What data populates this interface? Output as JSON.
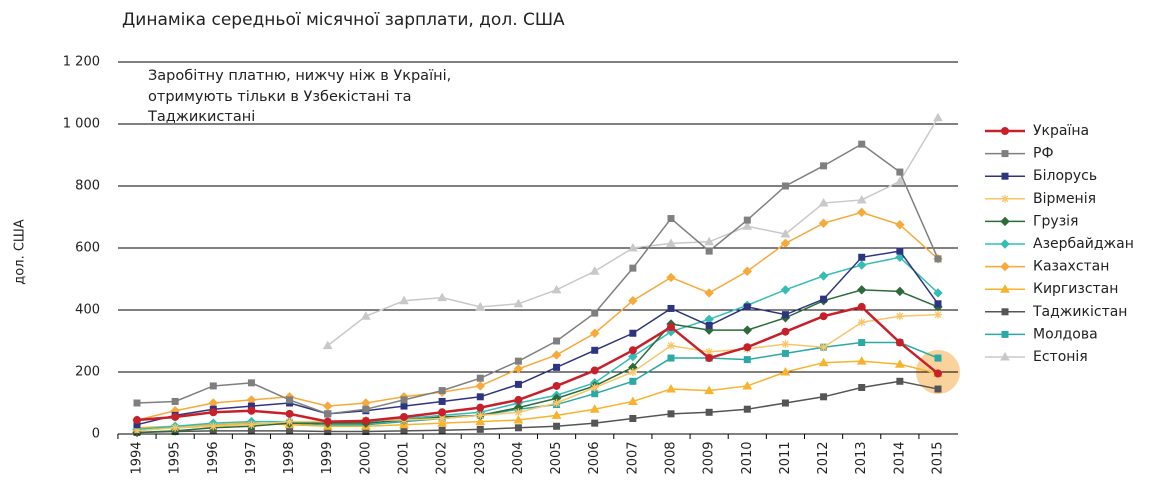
{
  "chart_data": {
    "type": "line",
    "title": "Динаміка  середньої місячної зарплати, дол. США",
    "ylabel": "дол. США",
    "annotation": [
      "Заробітну платню, нижчу ніж в Україні,",
      "отримують тільки в Узбекістані та",
      "Таджикистані"
    ],
    "categories": [
      "1994",
      "1995",
      "1996",
      "1997",
      "1998",
      "1999",
      "2000",
      "2001",
      "2002",
      "2003",
      "2004",
      "2005",
      "2006",
      "2007",
      "2008",
      "2009",
      "2010",
      "2011",
      "2012",
      "2013",
      "2014",
      "2015"
    ],
    "ylim": [
      0,
      1200
    ],
    "yticks": [
      0,
      200,
      400,
      600,
      800,
      {
        "value": 1000,
        "label": "1 000"
      },
      {
        "value": 1200,
        "label": "1 200"
      }
    ],
    "grid": true,
    "legend": "right",
    "series": [
      {
        "name": "Україна",
        "color": "#c8202a",
        "marker": "circle",
        "values": [
          45,
          55,
          70,
          75,
          65,
          40,
          42,
          55,
          70,
          85,
          110,
          155,
          205,
          270,
          345,
          245,
          280,
          330,
          380,
          410,
          295,
          195
        ]
      },
      {
        "name": "РФ",
        "color": "#7f7f7f",
        "marker": "square",
        "values": [
          100,
          105,
          155,
          165,
          110,
          65,
          80,
          110,
          140,
          180,
          235,
          300,
          390,
          535,
          695,
          590,
          690,
          800,
          865,
          935,
          845,
          565
        ]
      },
      {
        "name": "Білорусь",
        "color": "#2e3580",
        "marker": "square",
        "values": [
          30,
          60,
          80,
          90,
          100,
          65,
          75,
          90,
          105,
          120,
          160,
          215,
          270,
          325,
          405,
          350,
          410,
          385,
          435,
          570,
          590,
          420
        ]
      },
      {
        "name": "Вірменія",
        "color": "#f7c66a",
        "marker": "star",
        "values": [
          10,
          20,
          25,
          30,
          40,
          40,
          45,
          45,
          50,
          60,
          70,
          100,
          150,
          200,
          285,
          265,
          275,
          290,
          280,
          360,
          380,
          385
        ]
      },
      {
        "name": "Грузія",
        "color": "#2e6b3a",
        "marker": "diamond",
        "values": [
          5,
          10,
          20,
          25,
          35,
          35,
          35,
          45,
          55,
          60,
          85,
          115,
          155,
          215,
          355,
          335,
          335,
          375,
          430,
          465,
          460,
          410
        ]
      },
      {
        "name": "Азербайджан",
        "color": "#35bdb5",
        "marker": "diamond",
        "values": [
          15,
          25,
          35,
          40,
          40,
          35,
          40,
          50,
          60,
          70,
          100,
          125,
          165,
          250,
          330,
          370,
          415,
          465,
          510,
          545,
          570,
          455
        ]
      },
      {
        "name": "Казахстан",
        "color": "#f7a93a",
        "marker": "diamond",
        "values": [
          45,
          75,
          100,
          110,
          120,
          90,
          100,
          120,
          135,
          155,
          210,
          255,
          325,
          430,
          505,
          455,
          525,
          615,
          680,
          715,
          675,
          565
        ]
      },
      {
        "name": "Киргизстан",
        "color": "#f7b32b",
        "marker": "triangle",
        "values": [
          20,
          25,
          30,
          35,
          30,
          25,
          25,
          30,
          35,
          40,
          45,
          60,
          80,
          105,
          145,
          140,
          155,
          200,
          230,
          235,
          225,
          195
        ]
      },
      {
        "name": "Таджикістан",
        "color": "#555555",
        "marker": "square",
        "values": [
          5,
          8,
          10,
          10,
          10,
          8,
          8,
          10,
          12,
          15,
          20,
          25,
          35,
          50,
          65,
          70,
          80,
          100,
          120,
          150,
          170,
          145
        ]
      },
      {
        "name": "Молдова",
        "color": "#2aa9a5",
        "marker": "square",
        "values": [
          20,
          20,
          25,
          30,
          35,
          30,
          30,
          40,
          50,
          60,
          80,
          95,
          130,
          170,
          245,
          245,
          240,
          260,
          280,
          295,
          295,
          245
        ]
      },
      {
        "name": "Естонія",
        "color": "#c8c8c8",
        "marker": "triangle",
        "values": [
          null,
          null,
          null,
          null,
          null,
          285,
          380,
          430,
          440,
          410,
          420,
          465,
          525,
          600,
          615,
          620,
          670,
          645,
          745,
          755,
          815,
          1020
        ]
      }
    ]
  }
}
